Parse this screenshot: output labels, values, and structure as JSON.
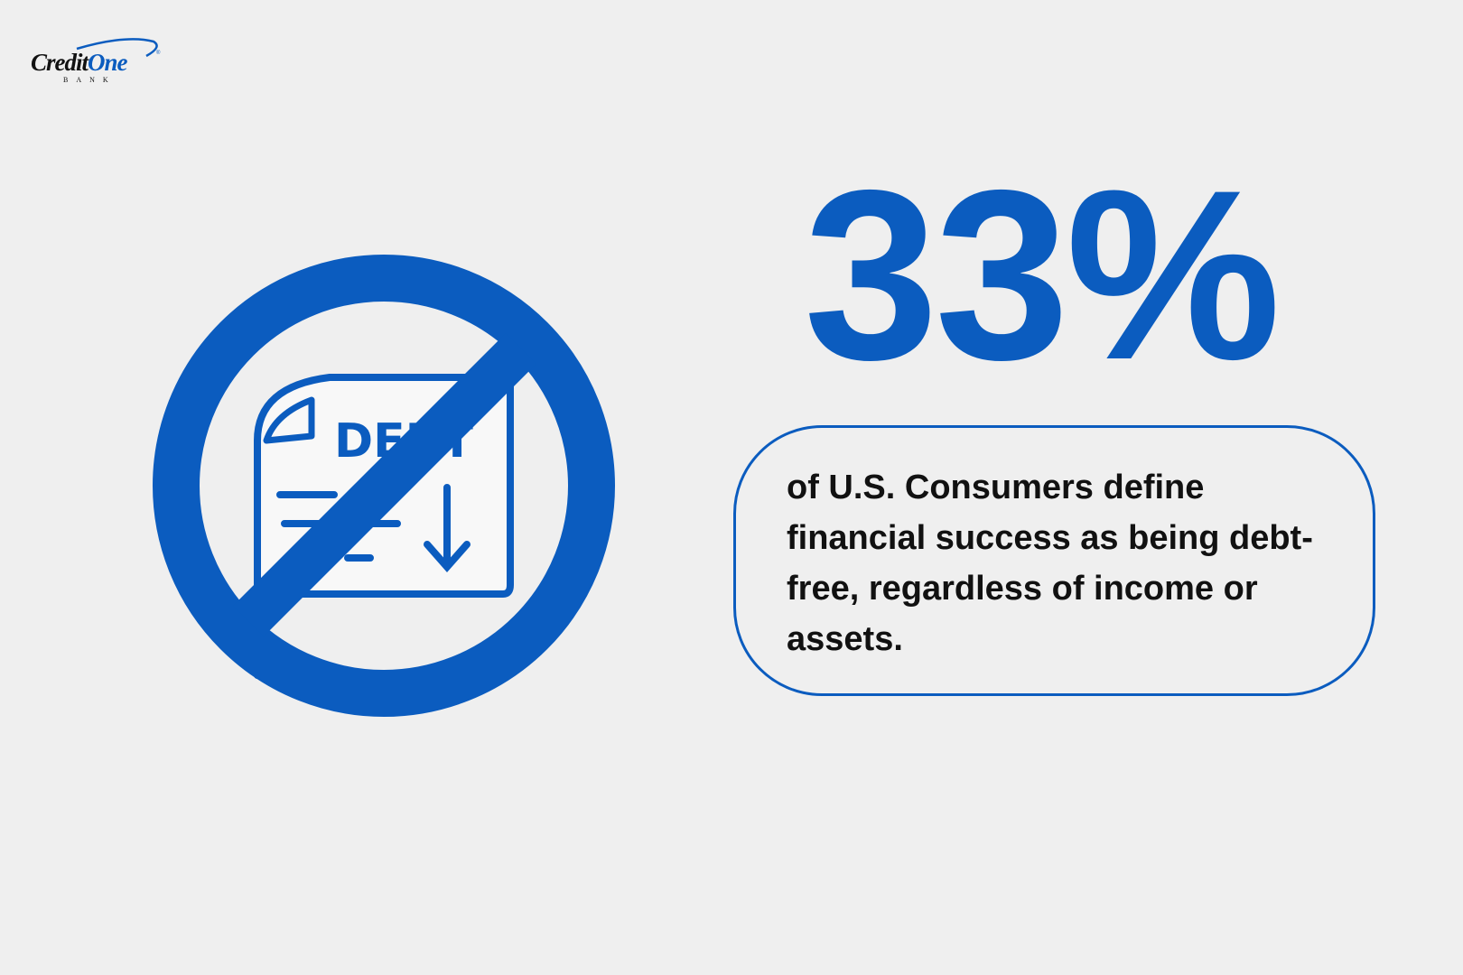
{
  "logo": {
    "text": "CreditOne",
    "subtext": "BANK"
  },
  "icon": {
    "name": "no-debt-icon",
    "document_label": "DEBT"
  },
  "stat": {
    "value": "33%"
  },
  "description": "of U.S. Consumers define financial success as being debt-free, regardless of income or assets.",
  "colors": {
    "accent": "#0b5cbf",
    "background": "#efefef",
    "text": "#111111"
  }
}
